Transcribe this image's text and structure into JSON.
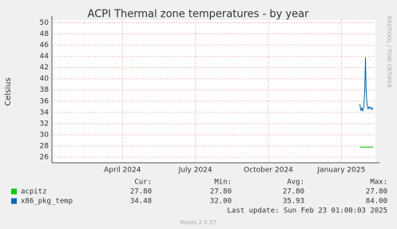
{
  "chart_data": {
    "type": "line",
    "title": "ACPI Thermal zone temperatures - by year",
    "y_label": "Celsius",
    "side_text": "RRDTOOL / TOBI OETIKER",
    "x": [
      12.76,
      12.8,
      12.84,
      12.88,
      12.92,
      12.96,
      12.99,
      13.02,
      13.06,
      13.1,
      13.14,
      13.18,
      13.22,
      13.26,
      13.3
    ],
    "xlim": [
      0.1,
      13.4
    ],
    "xticks": [
      {
        "value": 3,
        "label": "April 2024"
      },
      {
        "value": 6,
        "label": "July 2024"
      },
      {
        "value": 9,
        "label": "October 2024"
      },
      {
        "value": 12,
        "label": "January 2025"
      }
    ],
    "ylim": [
      25,
      50.5
    ],
    "yticks": [
      26,
      28,
      30,
      32,
      34,
      36,
      38,
      40,
      42,
      44,
      46,
      48,
      50
    ],
    "grid": true,
    "series": [
      {
        "name": "acpitz",
        "color": "#00cc00",
        "values": [
          27.8,
          27.8,
          27.8,
          27.8,
          27.8,
          27.8,
          27.8,
          27.8,
          27.8,
          27.8,
          27.8,
          27.8,
          27.8,
          27.8,
          27.8
        ],
        "stats": [
          "27.80",
          "27.80",
          "27.80",
          "27.80"
        ]
      },
      {
        "name": "x86_pkg_temp",
        "color": "#0066b3",
        "values": [
          35.5,
          34.3,
          34.8,
          34.2,
          35.0,
          38.0,
          43.8,
          37.5,
          35.2,
          34.6,
          35.0,
          34.7,
          34.9,
          34.5,
          34.8
        ],
        "stats": [
          "34.48",
          "32.00",
          "35.93",
          "84.00"
        ]
      }
    ],
    "stats_headers": [
      "Cur:",
      "Min:",
      "Avg:",
      "Max:"
    ],
    "last_update": "Last update: Sun Feb 23 01:00:03 2025",
    "footer": "Munin 2.0.57"
  }
}
